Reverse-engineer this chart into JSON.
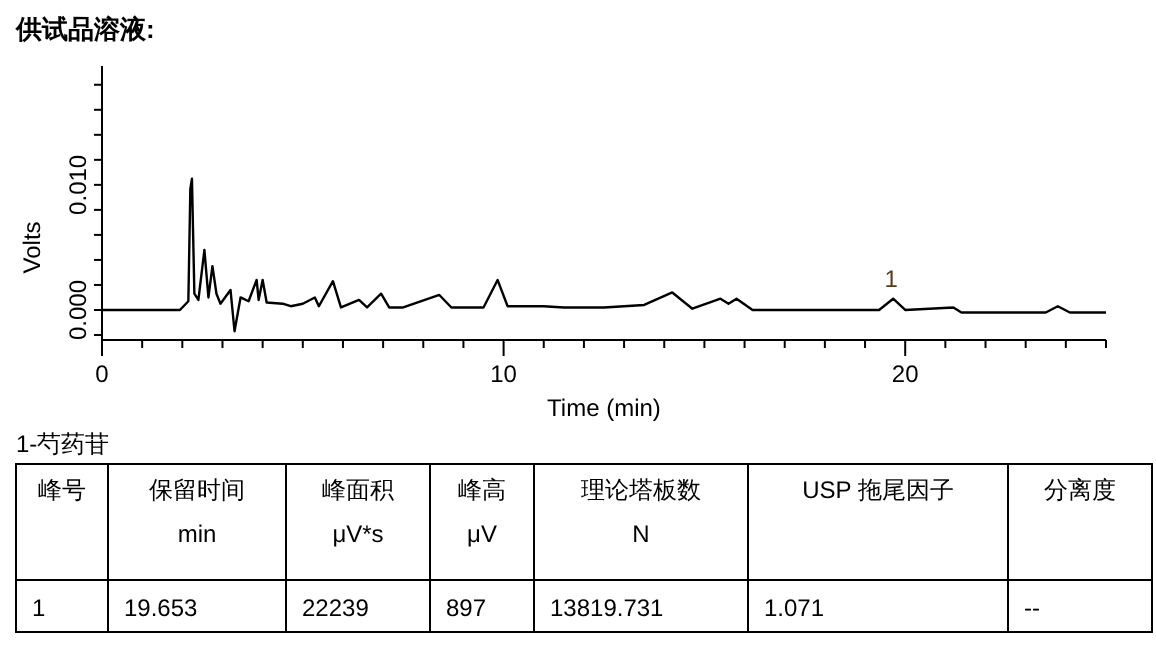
{
  "chart_data": {
    "type": "line",
    "title": "供试品溶液:",
    "xlabel": "Time (min)",
    "ylabel": "Volts",
    "xlim": [
      0,
      25
    ],
    "ylim": [
      -0.0024,
      0.0195
    ],
    "xticks": [
      0,
      {
        "value": 1,
        "label": null
      },
      {
        "value": 2,
        "label": null
      },
      {
        "value": 3,
        "label": null
      },
      {
        "value": 4,
        "label": null
      },
      {
        "value": 5,
        "label": null
      },
      {
        "value": 6,
        "label": null
      },
      {
        "value": 7,
        "label": null
      },
      {
        "value": 8,
        "label": null
      },
      {
        "value": 9,
        "label": null
      },
      10,
      {
        "value": 11,
        "label": null
      },
      {
        "value": 12,
        "label": null
      },
      {
        "value": 13,
        "label": null
      },
      {
        "value": 14,
        "label": null
      },
      {
        "value": 15,
        "label": null
      },
      {
        "value": 16,
        "label": null
      },
      {
        "value": 17,
        "label": null
      },
      {
        "value": 18,
        "label": null
      },
      {
        "value": 19,
        "label": null
      },
      20,
      {
        "value": 21,
        "label": null
      },
      {
        "value": 22,
        "label": null
      },
      {
        "value": 23,
        "label": null
      },
      {
        "value": 24,
        "label": null
      },
      {
        "value": 25,
        "label": null
      }
    ],
    "yticks": [
      {
        "value": -0.002,
        "label": null
      },
      {
        "value": 0,
        "label": "0.000"
      },
      {
        "value": 0.002,
        "label": null
      },
      {
        "value": 0.004,
        "label": null
      },
      {
        "value": 0.006,
        "label": null
      },
      {
        "value": 0.008,
        "label": null
      },
      {
        "value": 0.01,
        "label": "0.010"
      },
      {
        "value": 0.012,
        "label": null
      },
      {
        "value": 0.014,
        "label": null
      },
      {
        "value": 0.016,
        "label": null
      },
      {
        "value": 0.018,
        "label": null
      }
    ],
    "grid": false,
    "marker": "none",
    "line_style": "solid",
    "series": [
      {
        "color": "#000000",
        "x": [
          0,
          1.94,
          2.15,
          2.2,
          2.24,
          2.3,
          2.4,
          2.55,
          2.65,
          2.75,
          2.85,
          2.95,
          3.2,
          3.3,
          3.45,
          3.65,
          3.85,
          3.9,
          4.0,
          4.1,
          4.5,
          4.7,
          5.0,
          5.3,
          5.4,
          5.75,
          5.95,
          6.4,
          6.6,
          6.95,
          7.15,
          7.5,
          8.4,
          8.7,
          9.5,
          9.85,
          10.1,
          11.0,
          11.5,
          12.5,
          13.5,
          14.2,
          14.7,
          15.4,
          15.6,
          15.8,
          16.2,
          19.35,
          19.7,
          20.0,
          21.2,
          21.4,
          23.5,
          23.8,
          24.1,
          25
        ],
        "values": [
          0,
          0,
          0.0007,
          0.0097,
          0.0105,
          0.0013,
          0.0008,
          0.0048,
          0.001,
          0.0035,
          0.0013,
          0.0005,
          0.0016,
          -0.0017,
          0.001,
          0.0007,
          0.0024,
          0.0008,
          0.0024,
          0.0006,
          0.0005,
          0.0003,
          0.0005,
          0.001,
          0.0003,
          0.0023,
          0.0002,
          0.0008,
          0.0002,
          0.0013,
          0.0002,
          0.0002,
          0.0012,
          0.0002,
          0.0002,
          0.0024,
          0.0003,
          0.0003,
          0.0002,
          0.0002,
          0.0004,
          0.0014,
          0.0001,
          0.0009,
          0.0005,
          0.0009,
          0,
          0,
          0.0009,
          0,
          0.0002,
          -0.0002,
          -0.0002,
          0.0003,
          -0.0002,
          -0.0002
        ]
      }
    ],
    "annotations": [
      {
        "text": "1",
        "x": 19.653,
        "y": 0.0009
      },
      "1-芍药苷",
      "峰号",
      "保留时间\nmin",
      "峰面积\nμV*s",
      "峰高\nμV",
      "理论塔板数\nN",
      "USP 拖尾因子",
      "分离度",
      "1",
      "19.653",
      "22239",
      "897",
      "13819.731",
      "1.071",
      "--"
    ]
  }
}
